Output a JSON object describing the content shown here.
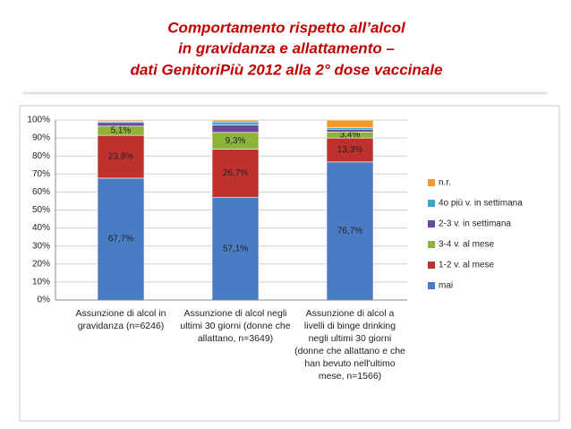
{
  "chart_data": {
    "type": "stacked_bar",
    "title": [
      "Comportamento rispetto all’alcol",
      "in gravidanza e allattamento –",
      "dati GenitoriPiù 2012 alla 2° dose vaccinale"
    ],
    "categories": [
      "Assunzione di alcol in gravidanza (n=6246)",
      "Assunzione di alcol negli ultimi 30 giorni (donne che allattano, n=3649)",
      "Assunzione di alcol a livelli di binge drinking negli ultimi 30 giorni (donne che allattano e che han bevuto nell'ultimo mese, n=1566)"
    ],
    "series": [
      {
        "name": "mai",
        "color": "#4a7cc4",
        "values": [
          67.7,
          57.1,
          76.7
        ],
        "value_labels": [
          "67,7%",
          "57,1%",
          "76,7%"
        ]
      },
      {
        "name": "1-2 v. al mese",
        "color": "#c0302d",
        "values": [
          23.8,
          26.7,
          13.3
        ],
        "value_labels": [
          "23,8%",
          "26,7%",
          "13,3%"
        ]
      },
      {
        "name": "3-4 v. al mese",
        "color": "#8db33a",
        "values": [
          5.1,
          9.3,
          3.4
        ],
        "value_labels": [
          "5,1%",
          "9,3%",
          "3,4%"
        ]
      },
      {
        "name": "2-3 v. in settimana",
        "color": "#6a4a9a",
        "values": [
          2.0,
          4.2,
          1.5
        ]
      },
      {
        "name": "4o più v. in settimana",
        "color": "#3aa8c8",
        "values": [
          0.6,
          1.6,
          0.8
        ]
      },
      {
        "name": "n.r.",
        "color": "#f59a2a",
        "values": [
          0.8,
          1.1,
          4.3
        ]
      }
    ],
    "ylim": [
      0,
      100
    ],
    "yticks": [
      {
        "value": 0,
        "label": "0%"
      },
      {
        "value": 10,
        "label": "10%"
      },
      {
        "value": 20,
        "label": "20%"
      },
      {
        "value": 30,
        "label": "30%"
      },
      {
        "value": 40,
        "label": "40%"
      },
      {
        "value": 50,
        "label": "50%"
      },
      {
        "value": 60,
        "label": "60%"
      },
      {
        "value": 70,
        "label": "70%"
      },
      {
        "value": 80,
        "label": "80%"
      },
      {
        "value": 90,
        "label": "90%"
      },
      {
        "value": 100,
        "label": "100%"
      }
    ],
    "grid": true
  }
}
